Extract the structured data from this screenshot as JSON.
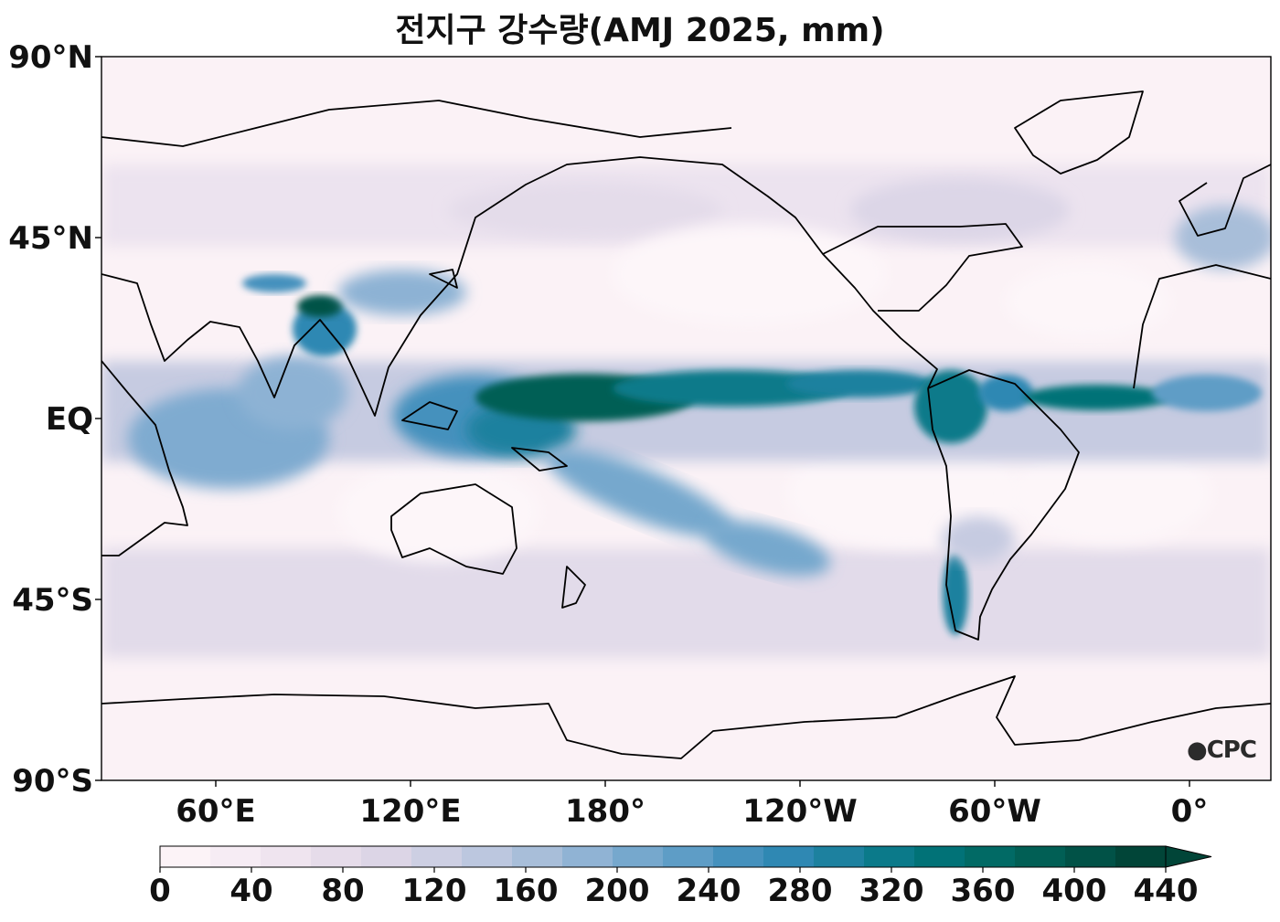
{
  "title": "전지구 강수량(AMJ 2025, mm)",
  "y_ticks": [
    "90°N",
    "45°N",
    "EQ",
    "45°S",
    "90°S"
  ],
  "x_ticks": [
    "60°E",
    "120°E",
    "180°",
    "120°W",
    "60°W",
    "0°"
  ],
  "colorbar": {
    "ticks": [
      "0",
      "40",
      "80",
      "120",
      "160",
      "200",
      "240",
      "280",
      "320",
      "360",
      "400",
      "440"
    ],
    "colors": [
      "#fcf3f7",
      "#f6ecf4",
      "#efe4ef",
      "#e6dcea",
      "#dcd5e6",
      "#cdcfe3",
      "#bcc7df",
      "#a8bed9",
      "#90b3d4",
      "#76a8cd",
      "#5e9dc6",
      "#4591bd",
      "#2f88b3",
      "#1d819f",
      "#0b7a8a",
      "#017277",
      "#016a65",
      "#015f55",
      "#015247",
      "#014538"
    ],
    "extend": "max"
  },
  "logo": "CPC"
}
